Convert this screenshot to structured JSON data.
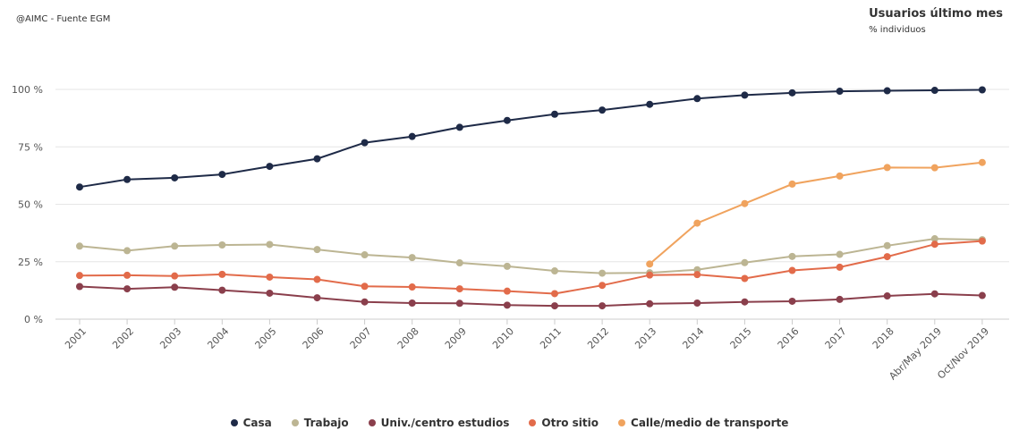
{
  "header": {
    "source": "@AIMC - Fuente EGM",
    "title": "Usuarios último mes",
    "subtitle": "% individuos"
  },
  "chart_data": {
    "type": "line",
    "title": "Usuarios último mes",
    "subtitle": "% individuos",
    "ylim": [
      0,
      100
    ],
    "yticks": [
      "0 %",
      "25 %",
      "50 %",
      "75 %",
      "100 %"
    ],
    "ytick_values": [
      0,
      25,
      50,
      75,
      100
    ],
    "grid": true,
    "legend_position": "bottom",
    "categories": [
      "2001",
      "2002",
      "2003",
      "2004",
      "2005",
      "2006",
      "2007",
      "2008",
      "2009",
      "2010",
      "2011",
      "2012",
      "2013",
      "2014",
      "2015",
      "2016",
      "2017",
      "2018",
      "Abr/May 2019",
      "Oct/Nov 2019"
    ],
    "series": [
      {
        "name": "Casa",
        "color": "#1e2a47",
        "values": [
          57.5,
          60.8,
          61.5,
          63,
          66.5,
          69.8,
          76.8,
          79.5,
          83.5,
          86.5,
          89.2,
          91,
          93.5,
          96,
          97.5,
          98.5,
          99.2,
          99.4,
          99.6,
          99.8
        ]
      },
      {
        "name": "Trabajo",
        "color": "#bcb593",
        "values": [
          31.8,
          29.8,
          31.8,
          32.3,
          32.5,
          30.3,
          28,
          26.8,
          24.5,
          23,
          21,
          20,
          20.2,
          21.5,
          24.6,
          27.3,
          28.2,
          32,
          35,
          34.6
        ]
      },
      {
        "name": "Univ./centro estudios",
        "color": "#8a3f4c",
        "values": [
          14.2,
          13.2,
          13.9,
          12.6,
          11.3,
          9.3,
          7.5,
          7,
          6.9,
          6.1,
          5.8,
          5.8,
          6.7,
          7,
          7.5,
          7.8,
          8.6,
          10.1,
          11,
          10.3
        ]
      },
      {
        "name": "Otro sitio",
        "color": "#e26b4a",
        "values": [
          19,
          19.1,
          18.8,
          19.5,
          18.3,
          17.3,
          14.3,
          14,
          13.2,
          12.2,
          11.1,
          14.7,
          19.2,
          19.4,
          17.7,
          21.2,
          22.6,
          27.2,
          32.6,
          34
        ]
      },
      {
        "name": "Calle/medio de transporte",
        "color": "#f0a35e",
        "values": [
          null,
          null,
          null,
          null,
          null,
          null,
          null,
          null,
          null,
          null,
          null,
          null,
          24,
          41.8,
          50.3,
          58.8,
          62.3,
          66,
          65.9,
          68.2
        ]
      }
    ]
  }
}
